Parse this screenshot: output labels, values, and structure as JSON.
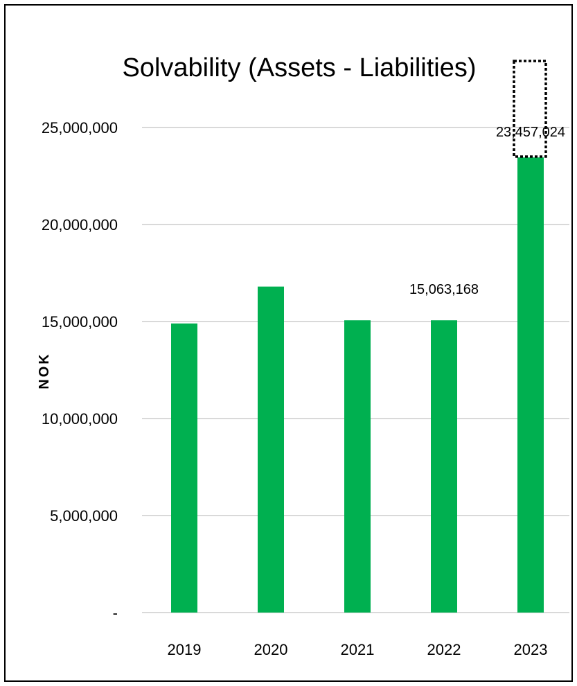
{
  "chart_data": {
    "type": "bar",
    "title": "Solvability (Assets - Liabilities)",
    "xlabel": "",
    "ylabel": "NOK",
    "categories": [
      "2019",
      "2020",
      "2021",
      "2022",
      "2023"
    ],
    "values": [
      14900000,
      16800000,
      15063168,
      15063168,
      23457024
    ],
    "data_labels": [
      "",
      "",
      "",
      "15,063,168",
      "23,457,024"
    ],
    "ylim": [
      0,
      25000000
    ],
    "yticks": [
      0,
      5000000,
      10000000,
      15000000,
      20000000,
      25000000
    ],
    "ytick_labels": [
      "-",
      "5,000,000",
      "10,000,000",
      "15,000,000",
      "20,000,000",
      "25,000,000"
    ],
    "grid": true,
    "legend": "none",
    "bar_color": "#00b050",
    "gridline_color": "#d9d9d9"
  }
}
